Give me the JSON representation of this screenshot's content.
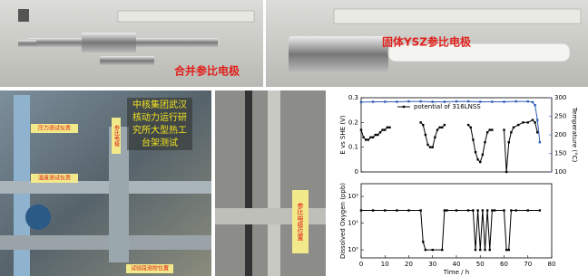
{
  "photos": {
    "top_left_label": "合并参比电极",
    "top_right_label": "固体YSZ参比电极",
    "bottom_left_caption": [
      "中核集团武汉",
      "核动力运行研",
      "究所大型热工",
      "台架测试"
    ],
    "bottom_left_tags": [
      "压力测试仪表",
      "参比电极",
      "温度测试仪表",
      "试验段测控位置"
    ],
    "bottom_middle_tag": "参比电极位置"
  },
  "chart_data": [
    {
      "type": "line",
      "ylabel": "E vs SHE (V)",
      "y2label": "Temperature (°C)",
      "xlim": [
        0,
        80
      ],
      "ylim": [
        0,
        0.3
      ],
      "yticks": [
        0.0,
        0.1,
        0.2,
        0.3
      ],
      "y2lim": [
        100,
        300
      ],
      "y2ticks": [
        100,
        150,
        200,
        250,
        300
      ],
      "legend": "top",
      "series": [
        {
          "name": "potential of 316LNSS",
          "color": "#000000",
          "x": [
            0,
            1,
            2,
            3,
            4,
            5,
            6,
            7,
            8,
            9,
            10,
            11,
            12,
            18,
            25,
            26,
            27,
            28,
            29,
            30,
            31,
            32,
            33,
            34,
            35,
            40,
            45,
            46,
            47,
            48,
            49,
            50,
            51,
            52,
            53,
            54,
            55,
            58,
            60,
            61,
            62,
            63,
            64,
            66,
            68,
            70,
            72,
            73,
            74
          ],
          "values": [
            0.17,
            0.14,
            0.13,
            0.13,
            0.14,
            0.14,
            0.15,
            0.15,
            0.16,
            0.17,
            0.17,
            0.18,
            0.18,
            null,
            0.2,
            0.19,
            0.15,
            0.11,
            0.1,
            0.1,
            0.14,
            0.17,
            0.18,
            0.18,
            0.19,
            null,
            0.19,
            0.18,
            0.13,
            0.08,
            0.05,
            0.04,
            0.07,
            0.12,
            0.16,
            0.17,
            0.17,
            null,
            0.17,
            0.0,
            0.12,
            0.16,
            0.18,
            0.19,
            0.2,
            0.2,
            0.21,
            0.2,
            0.16
          ]
        },
        {
          "color": "#2f5bb5",
          "axis": "y2",
          "x": [
            0,
            5,
            10,
            15,
            20,
            25,
            30,
            35,
            40,
            45,
            50,
            55,
            60,
            65,
            70,
            72,
            73,
            74,
            75
          ],
          "values": [
            288,
            289,
            289,
            289,
            290,
            290,
            289,
            289,
            290,
            290,
            289,
            289,
            289,
            290,
            290,
            288,
            280,
            240,
            180
          ]
        }
      ]
    },
    {
      "type": "line",
      "ylabel": "Dissolved Oxygen (ppb)",
      "xlabel": "Time / h",
      "log": true,
      "xlim": [
        0,
        80
      ],
      "xticks": [
        0,
        10,
        20,
        30,
        40,
        50,
        60,
        70,
        80
      ],
      "ylim": [
        0.5,
        300
      ],
      "yticks": [
        {
          "value": 1,
          "label": "10⁰"
        },
        {
          "value": 10,
          "label": "10¹"
        },
        {
          "value": 100,
          "label": "10²"
        }
      ],
      "series": [
        {
          "color": "#000000",
          "x": [
            0,
            5,
            10,
            15,
            20,
            25,
            26,
            27,
            30,
            34,
            35,
            36,
            40,
            45,
            47,
            48,
            49,
            50,
            51,
            52,
            53,
            54,
            55,
            56,
            60,
            61,
            62,
            63,
            65,
            70,
            75
          ],
          "values": [
            30,
            30,
            30,
            30,
            30,
            30,
            2,
            1,
            1,
            1,
            30,
            30,
            30,
            30,
            30,
            1,
            30,
            1,
            30,
            1,
            30,
            1,
            30,
            30,
            30,
            1,
            1,
            30,
            30,
            30,
            30
          ]
        }
      ]
    }
  ]
}
